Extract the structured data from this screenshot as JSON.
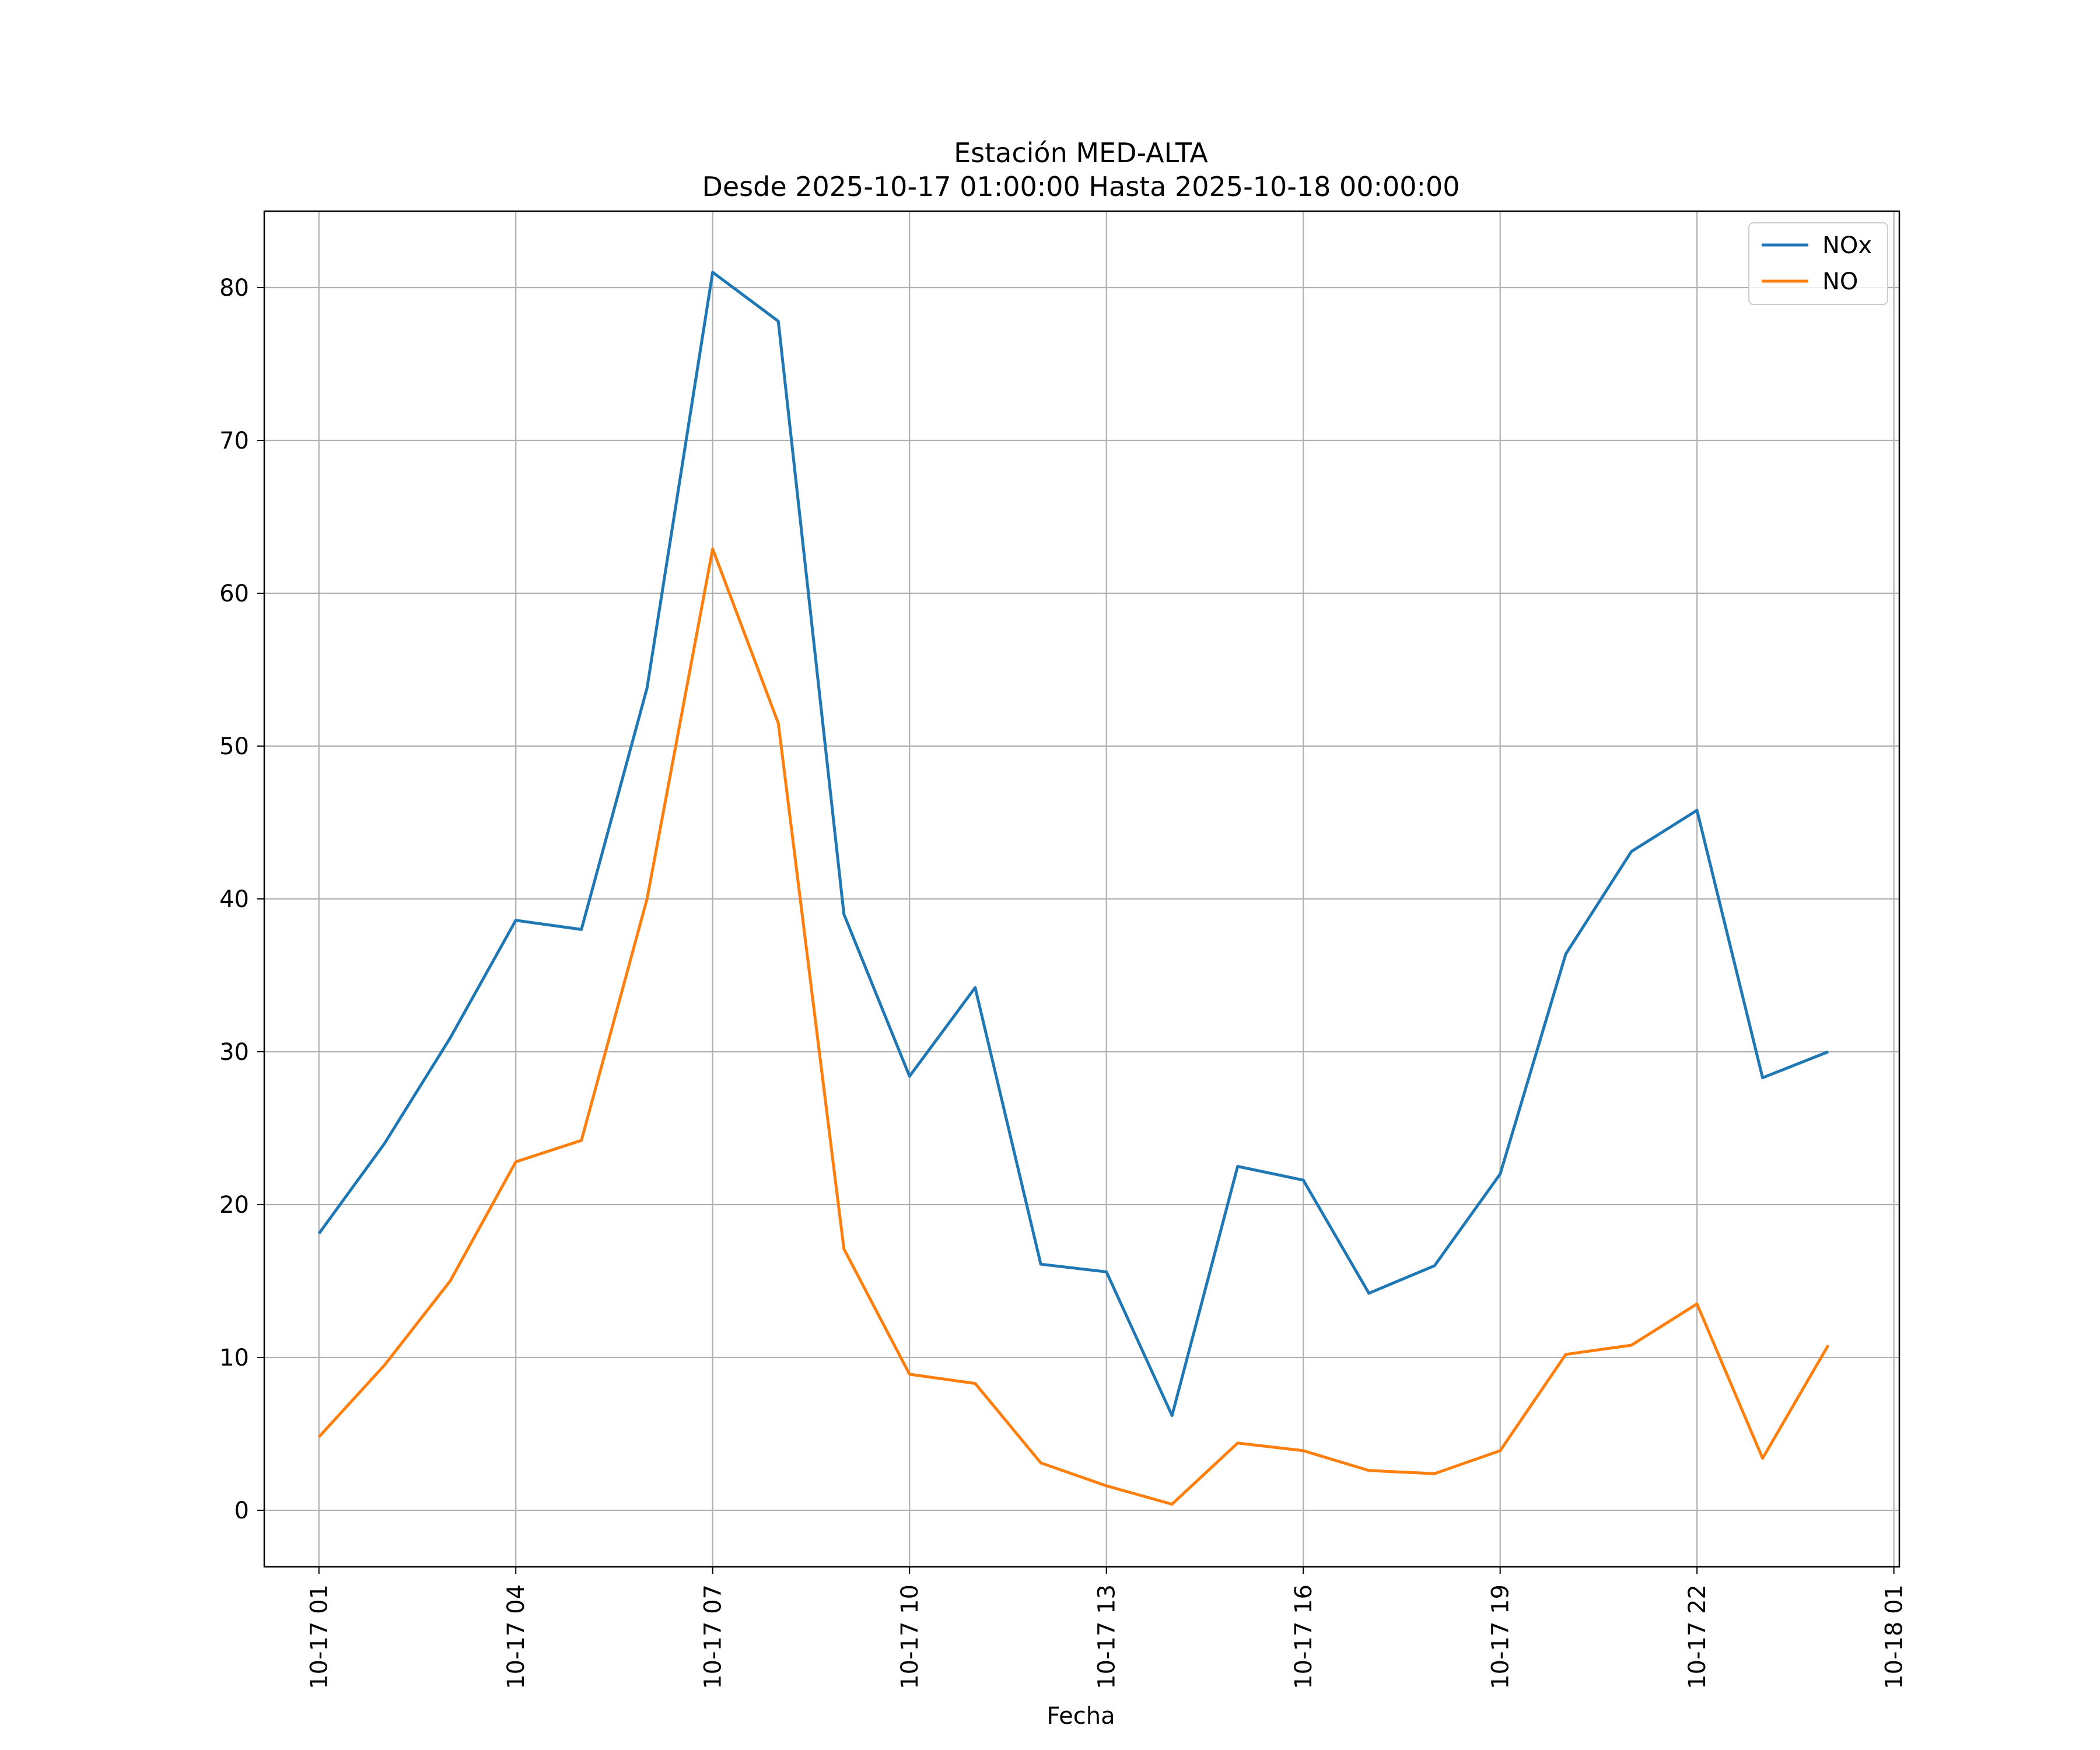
{
  "chart_data": {
    "type": "line",
    "title": "Estación MED-ALTA",
    "subtitle": "Desde 2025-10-17 01:00:00 Hasta 2025-10-18 00:00:00",
    "xlabel": "Fecha",
    "ylabel": "",
    "x": [
      "2025-10-17 01:00",
      "2025-10-17 02:00",
      "2025-10-17 03:00",
      "2025-10-17 04:00",
      "2025-10-17 05:00",
      "2025-10-17 06:00",
      "2025-10-17 07:00",
      "2025-10-17 08:00",
      "2025-10-17 09:00",
      "2025-10-17 10:00",
      "2025-10-17 11:00",
      "2025-10-17 12:00",
      "2025-10-17 13:00",
      "2025-10-17 14:00",
      "2025-10-17 15:00",
      "2025-10-17 16:00",
      "2025-10-17 17:00",
      "2025-10-17 18:00",
      "2025-10-17 19:00",
      "2025-10-17 20:00",
      "2025-10-17 21:00",
      "2025-10-17 22:00",
      "2025-10-17 23:00",
      "2025-10-18 00:00"
    ],
    "x_ticks": [
      "10-17 01",
      "10-17 04",
      "10-17 07",
      "10-17 10",
      "10-17 13",
      "10-17 16",
      "10-17 19",
      "10-17 22",
      "10-18 01"
    ],
    "y_ticks": [
      0,
      10,
      20,
      30,
      40,
      50,
      60,
      70,
      80
    ],
    "ylim": [
      -3.7,
      85
    ],
    "xlim": [
      "2025-10-17 00:10",
      "2025-10-18 01:05"
    ],
    "grid": true,
    "legend_position": "top-right",
    "series": [
      {
        "name": "NOx",
        "color": "#1f77b4",
        "values": [
          18.1,
          24.0,
          30.9,
          38.6,
          38.0,
          53.8,
          81.0,
          77.8,
          39.0,
          28.4,
          34.2,
          16.1,
          15.6,
          6.2,
          22.5,
          21.6,
          14.2,
          16.0,
          22.0,
          36.4,
          43.1,
          45.8,
          28.3,
          30.0
        ]
      },
      {
        "name": "NO",
        "color": "#ff7f0e",
        "values": [
          4.8,
          9.5,
          15.0,
          22.8,
          24.2,
          40.0,
          62.9,
          51.5,
          17.1,
          8.9,
          8.3,
          3.1,
          1.6,
          0.4,
          4.4,
          3.9,
          2.6,
          2.4,
          3.9,
          10.2,
          10.8,
          13.5,
          3.4,
          10.8
        ]
      }
    ]
  }
}
